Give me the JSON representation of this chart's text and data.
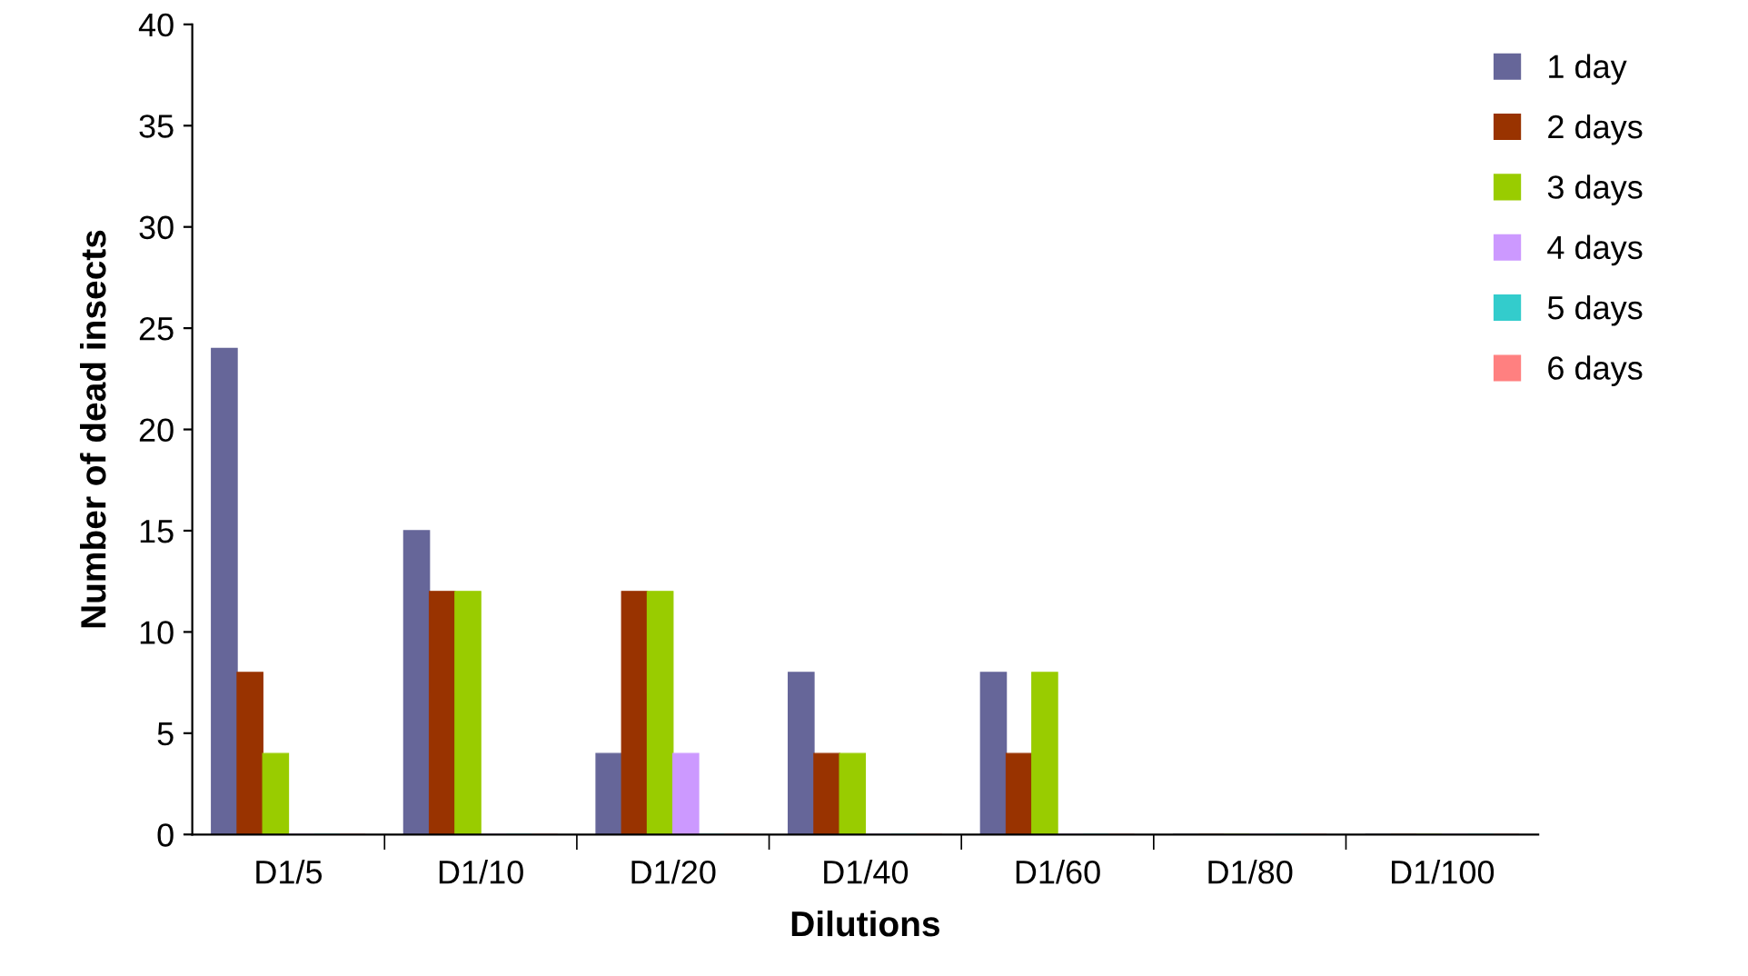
{
  "chart_data": {
    "type": "bar",
    "xlabel": "Dilutions",
    "ylabel": "Number of dead insects",
    "categories": [
      "D1/5",
      "D1/10",
      "D1/20",
      "D1/40",
      "D1/60",
      "D1/80",
      "D1/100"
    ],
    "series": [
      {
        "name": "1 day",
        "color": "#666699",
        "values": [
          24,
          15,
          4,
          8,
          8,
          0,
          0
        ]
      },
      {
        "name": "2 days",
        "color": "#993300",
        "values": [
          8,
          12,
          12,
          4,
          4,
          0,
          0
        ]
      },
      {
        "name": "3 days",
        "color": "#99cc00",
        "values": [
          4,
          12,
          12,
          4,
          8,
          0,
          0
        ]
      },
      {
        "name": "4 days",
        "color": "#cc99ff",
        "values": [
          0,
          0,
          4,
          0,
          0,
          0,
          0
        ]
      },
      {
        "name": "5 days",
        "color": "#33cccc",
        "values": [
          0,
          0,
          0,
          0,
          0,
          0,
          0
        ]
      },
      {
        "name": "6 days",
        "color": "#ff8080",
        "values": [
          0,
          0,
          0,
          0,
          0,
          0,
          0
        ]
      }
    ],
    "ylim": [
      0,
      40
    ],
    "yticks": [
      0,
      5,
      10,
      15,
      20,
      25,
      30,
      35,
      40
    ],
    "grid": false,
    "legend": "top right"
  }
}
